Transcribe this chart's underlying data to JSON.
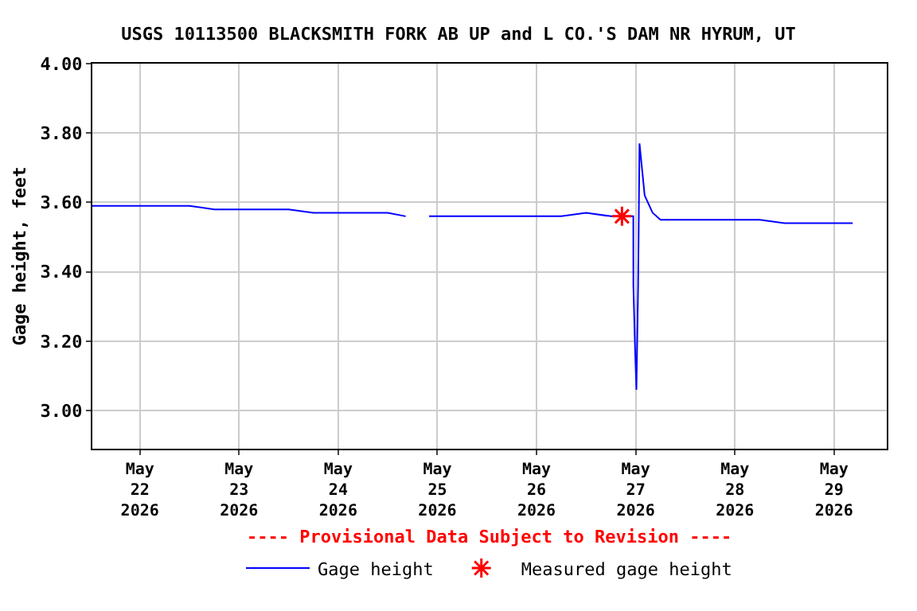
{
  "chart_data": {
    "type": "line",
    "title": "USGS 10113500 BLACKSMITH FORK AB UP and L CO.'S DAM NR HYRUM, UT",
    "ylabel": "Gage height, feet",
    "annotations": [
      "---- Provisional Data Subject to Revision ----"
    ],
    "series": [
      {
        "name": "Gage height",
        "color": "#0000ff",
        "x": [
          "2026-05-21T12:30",
          "2026-05-21T18:00",
          "2026-05-22T00:00",
          "2026-05-22T06:00",
          "2026-05-22T12:00",
          "2026-05-22T18:00",
          "2026-05-23T00:00",
          "2026-05-23T06:00",
          "2026-05-23T12:00",
          "2026-05-23T18:00",
          "2026-05-24T00:00",
          "2026-05-24T06:00",
          "2026-05-24T12:00",
          "2026-05-24T16:20",
          "2026-05-24T19:00",
          "2026-05-24T22:00",
          "2026-05-25T00:00",
          "2026-05-25T06:00",
          "2026-05-25T12:00",
          "2026-05-25T18:00",
          "2026-05-26T00:00",
          "2026-05-26T06:00",
          "2026-05-26T12:00",
          "2026-05-26T18:00",
          "2026-05-26T23:25",
          "2026-05-26T23:26",
          "2026-05-26T23:50",
          "2026-05-27T00:10",
          "2026-05-27T00:35",
          "2026-05-27T00:55",
          "2026-05-27T02:10",
          "2026-05-27T04:05",
          "2026-05-27T06:00",
          "2026-05-27T12:00",
          "2026-05-27T18:00",
          "2026-05-28T00:00",
          "2026-05-28T06:00",
          "2026-05-28T12:00",
          "2026-05-28T18:00",
          "2026-05-29T00:00",
          "2026-05-29T04:30"
        ],
        "values": [
          3.59,
          3.59,
          3.59,
          3.59,
          3.59,
          3.58,
          3.58,
          3.58,
          3.58,
          3.57,
          3.57,
          3.57,
          3.57,
          3.56,
          null,
          3.56,
          3.56,
          3.56,
          3.56,
          3.56,
          3.56,
          3.56,
          3.57,
          3.56,
          3.56,
          3.36,
          3.18,
          3.06,
          3.36,
          3.77,
          3.62,
          3.57,
          3.55,
          3.55,
          3.55,
          3.55,
          3.55,
          3.54,
          3.54,
          3.54,
          3.54
        ]
      },
      {
        "name": "Measured gage height",
        "color": "#ff0000",
        "type": "scatter",
        "marker": "cross",
        "x": [
          "2026-05-26T20:40"
        ],
        "values": [
          3.56
        ]
      }
    ],
    "xlim": [
      "2026-05-21T12:30",
      "2026-05-29T12:45"
    ],
    "xticks": [
      {
        "value": "2026-05-22",
        "label": "May\n22\n2026"
      },
      {
        "value": "2026-05-23",
        "label": "May\n23\n2026"
      },
      {
        "value": "2026-05-24",
        "label": "May\n24\n2026"
      },
      {
        "value": "2026-05-25",
        "label": "May\n25\n2026"
      },
      {
        "value": "2026-05-26",
        "label": "May\n26\n2026"
      },
      {
        "value": "2026-05-27",
        "label": "May\n27\n2026"
      },
      {
        "value": "2026-05-28",
        "label": "May\n28\n2026"
      },
      {
        "value": "2026-05-29",
        "label": "May\n29\n2026"
      }
    ],
    "ylim": [
      2.89,
      4.0
    ],
    "yticks": [
      {
        "value": 3.0,
        "label": "3.00"
      },
      {
        "value": 3.2,
        "label": "3.20"
      },
      {
        "value": 3.4,
        "label": "3.40"
      },
      {
        "value": 3.6,
        "label": "3.60"
      },
      {
        "value": 3.8,
        "label": "3.80"
      },
      {
        "value": 4.0,
        "label": "4.00"
      }
    ],
    "grid": true,
    "legend": "bottom"
  }
}
